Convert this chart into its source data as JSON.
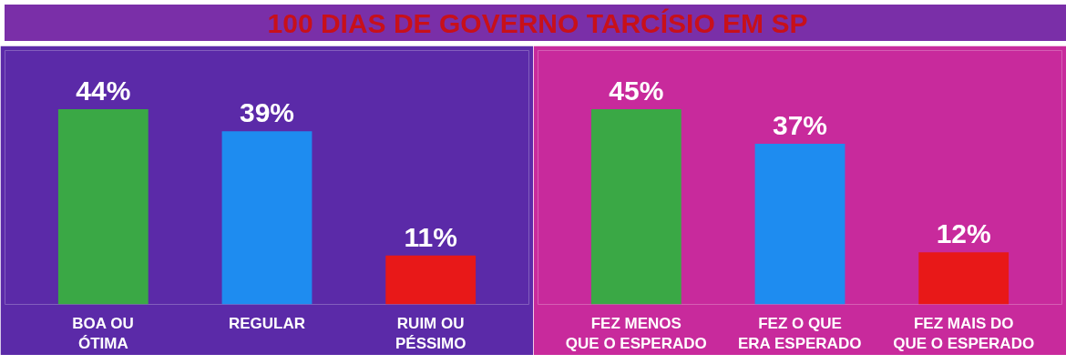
{
  "chart_data": [
    {
      "type": "bar",
      "title": "100 DIAS DE GOVERNO TARCÍSIO EM SP",
      "categories": [
        "BOA OU\nÓTIMA",
        "REGULAR",
        "RUIM OU\nPÉSSIMO"
      ],
      "values": [
        44,
        39,
        11
      ],
      "colors": [
        "#3aa845",
        "#1e8cf0",
        "#e81818"
      ],
      "value_labels": [
        "44%",
        "39%",
        "11%"
      ]
    },
    {
      "type": "bar",
      "categories": [
        "FEZ MENOS\nQUE O ESPERADO",
        "FEZ O QUE\nERA ESPERADO",
        "FEZ MAIS DO\nQUE O ESPERADO"
      ],
      "values": [
        45,
        37,
        12
      ],
      "colors": [
        "#3aa845",
        "#1e8cf0",
        "#e81818"
      ],
      "value_labels": [
        "45%",
        "37%",
        "12%"
      ]
    }
  ]
}
